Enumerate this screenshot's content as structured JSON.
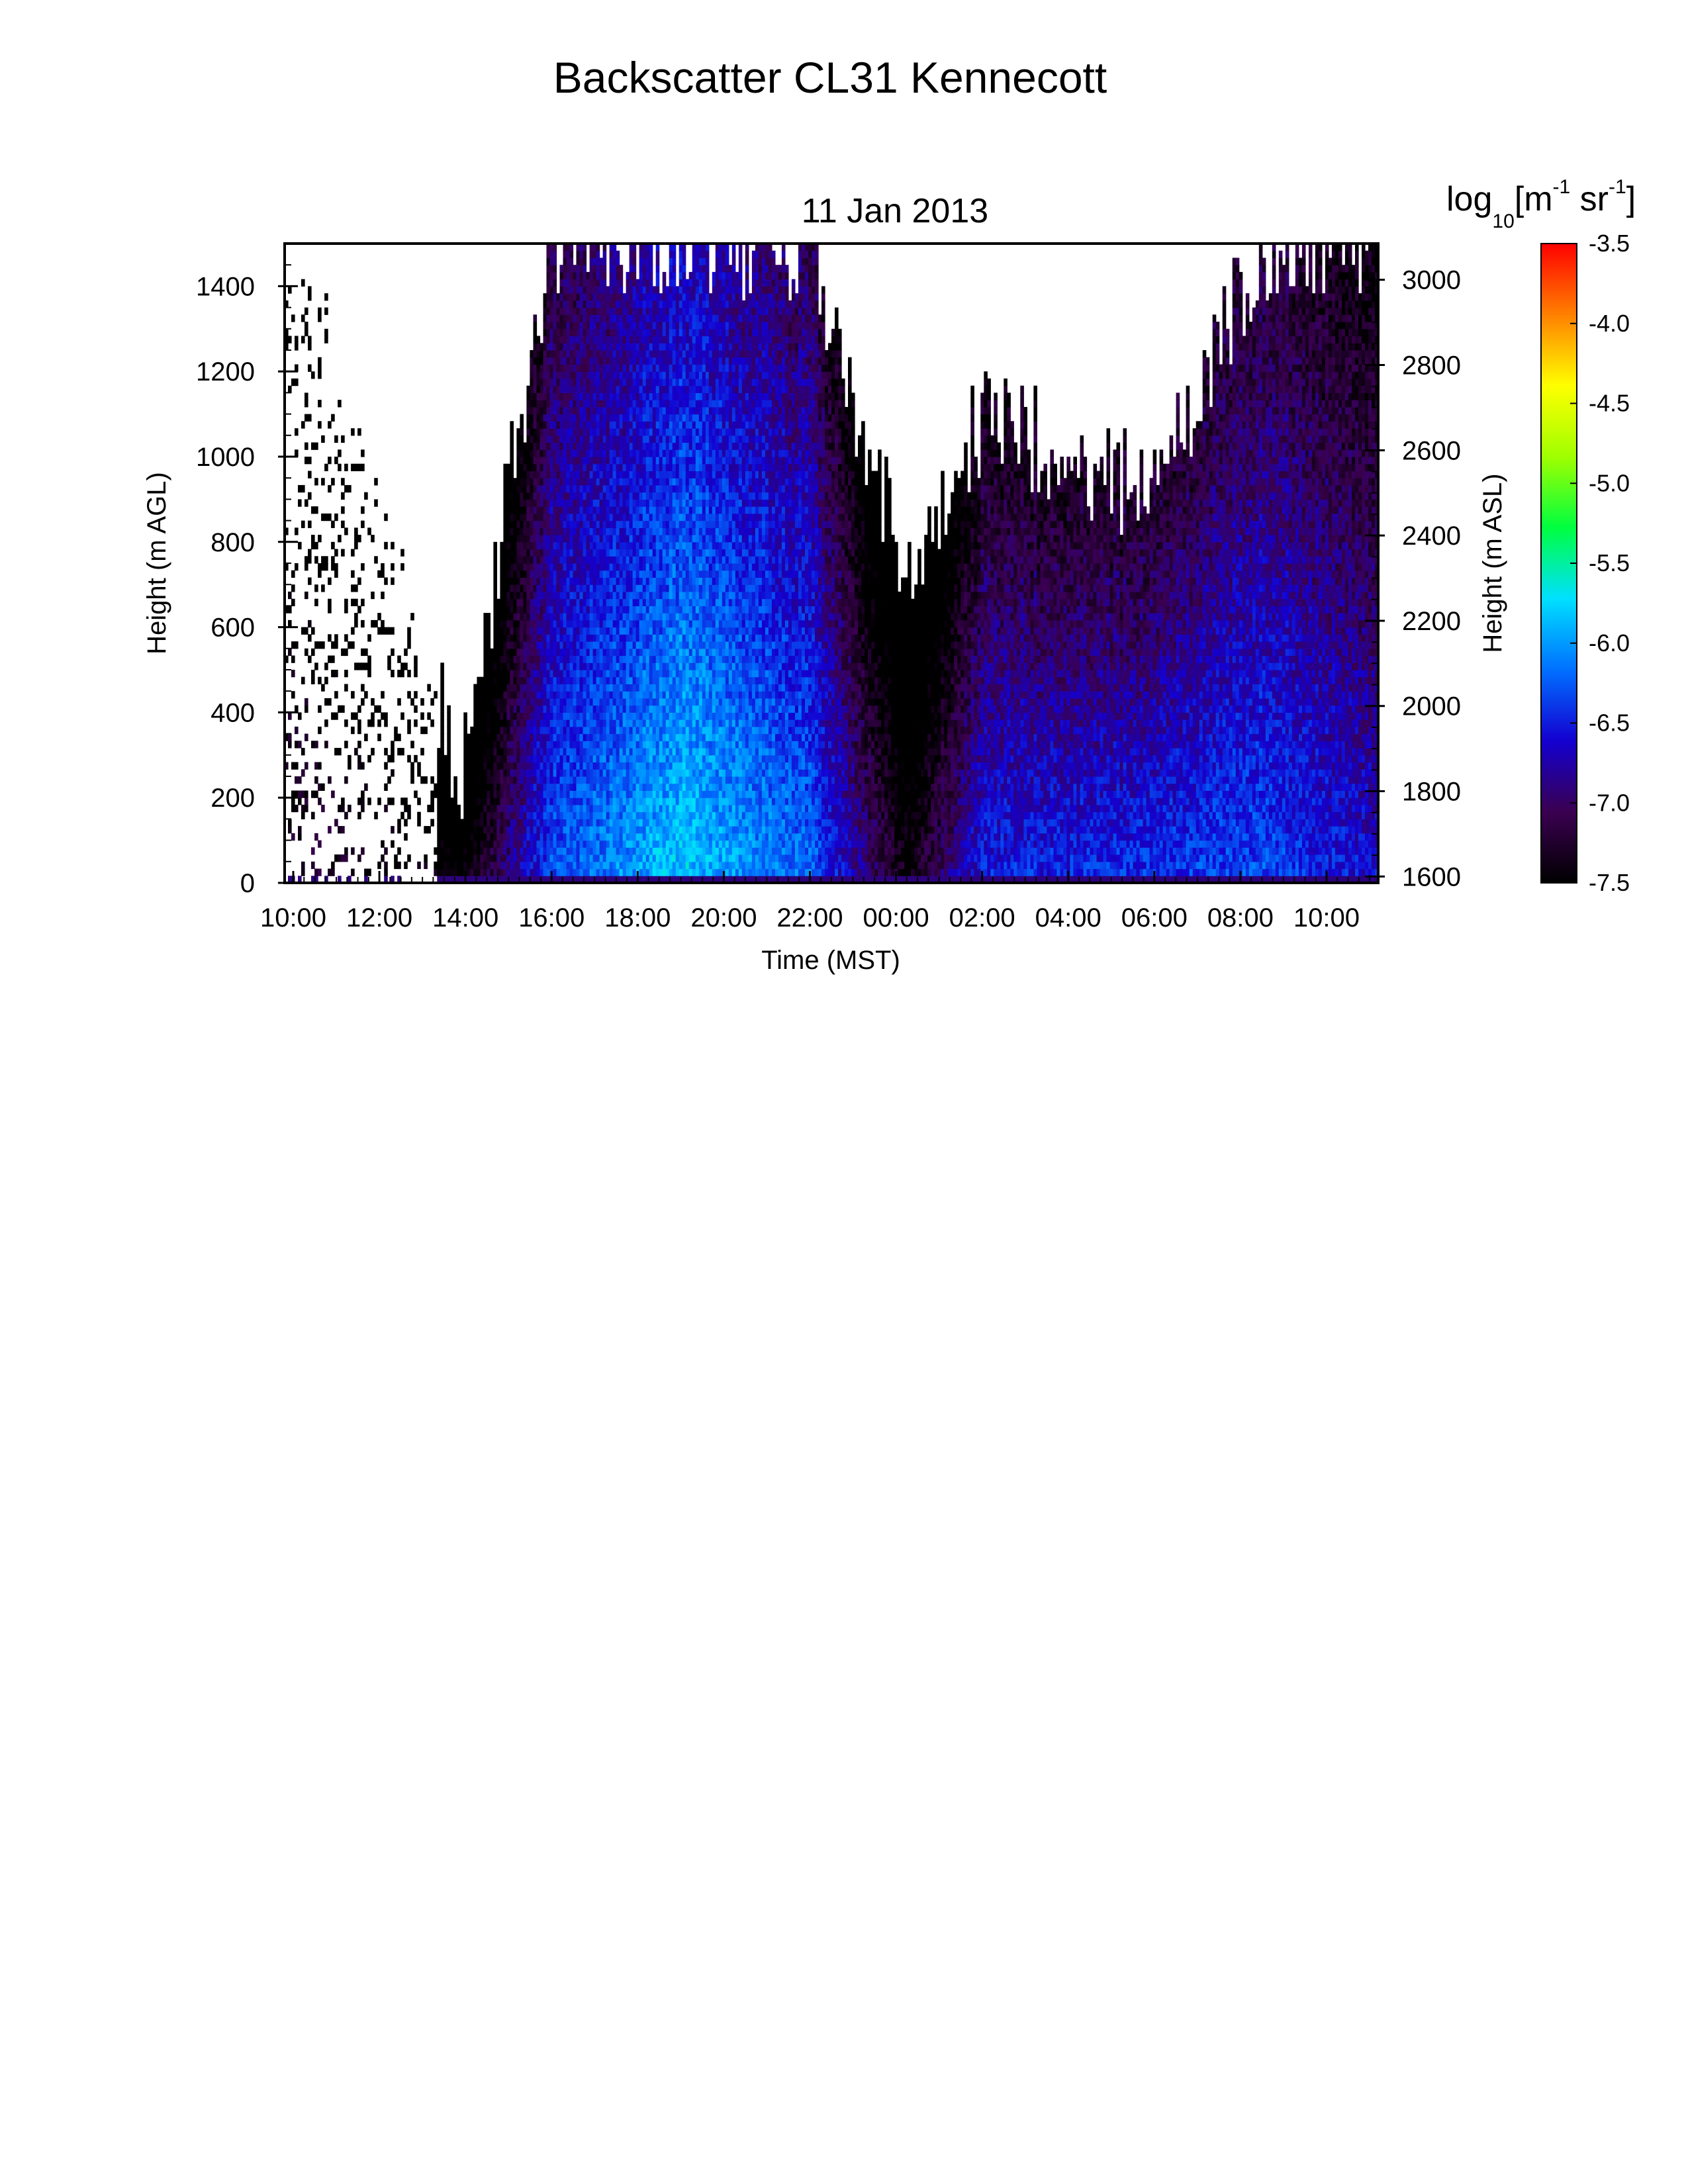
{
  "chart_data": {
    "type": "heatmap",
    "title": "Backscatter CL31 Kennecott",
    "subtitle": "11 Jan 2013",
    "xlabel": "Time (MST)",
    "ylabel": "Height (m AGL)",
    "ylabel_right": "Height (m ASL)",
    "x_tick_labels": [
      "10:00",
      "12:00",
      "14:00",
      "16:00",
      "18:00",
      "20:00",
      "22:00",
      "00:00",
      "02:00",
      "04:00",
      "06:00",
      "08:00",
      "10:00"
    ],
    "x_range_hours": [
      9.8,
      35.2
    ],
    "y_ticks": [
      0,
      200,
      400,
      600,
      800,
      1000,
      1200,
      1400
    ],
    "ylim": [
      0,
      1500
    ],
    "y_right_ticks": [
      1600,
      1800,
      2000,
      2200,
      2400,
      2600,
      2800,
      3000
    ],
    "y_right_offset": 1585,
    "colorbar": {
      "label_base": "log",
      "label_sub": "10",
      "label_units_open": "[m",
      "label_exp1": "-1",
      "label_units_mid": " sr",
      "label_exp2": "-1",
      "label_units_close": "]",
      "ticks": [
        "-3.5",
        "-4.0",
        "-4.5",
        "-5.0",
        "-5.5",
        "-6.0",
        "-6.5",
        "-7.0",
        "-7.5"
      ],
      "range": [
        -7.5,
        -3.5
      ],
      "colors": [
        "#000000",
        "#3a0050",
        "#1400d0",
        "#0070ff",
        "#00e0ff",
        "#00ff40",
        "#a0ff00",
        "#ffff00",
        "#ff8000",
        "#ff0000"
      ]
    },
    "field_description_points": [
      {
        "time_h": 10.0,
        "height_top": 1500,
        "value": -7.2,
        "sparse": true
      },
      {
        "time_h": 13.9,
        "height_top": 250,
        "value": -7.5
      },
      {
        "time_h": 16.0,
        "height_top": 1500,
        "value": -6.3
      },
      {
        "time_h": 19.0,
        "height_top": 1500,
        "value": -5.8
      },
      {
        "time_h": 22.0,
        "height_top": 1500,
        "value": -6.2
      },
      {
        "time_h": 24.3,
        "height_top": 700,
        "value": -7.4
      },
      {
        "time_h": 26.0,
        "height_top": 1100,
        "value": -6.5
      },
      {
        "time_h": 30.0,
        "height_top": 900,
        "value": -6.4
      },
      {
        "time_h": 32.5,
        "height_top": 1500,
        "value": -6.3
      },
      {
        "time_h": 35.0,
        "height_top": 1500,
        "value": -6.6
      }
    ]
  }
}
